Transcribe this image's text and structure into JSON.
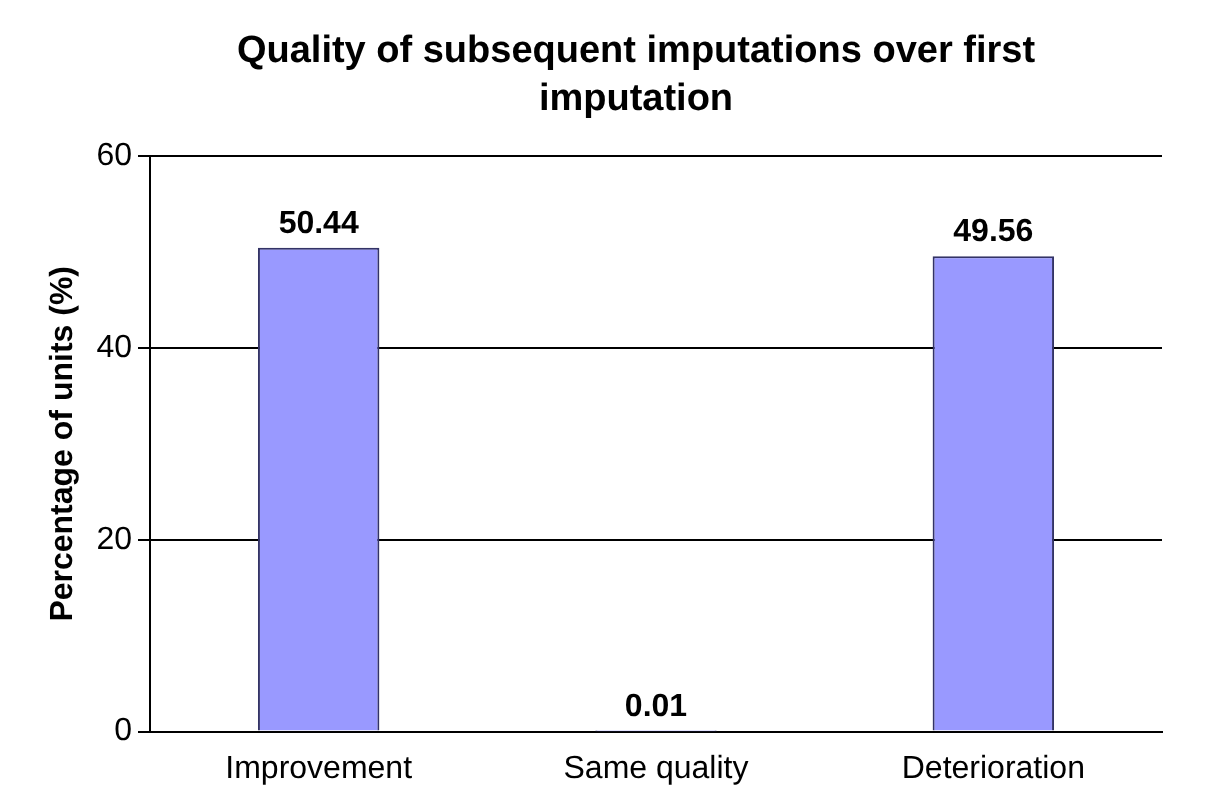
{
  "chart_data": {
    "type": "bar",
    "title": "Quality of subsequent imputations over first imputation",
    "ylabel": "Percentage of units (%)",
    "categories": [
      "Improvement",
      "Same quality",
      "Deterioration"
    ],
    "values": [
      50.44,
      0.01,
      49.56
    ],
    "color": "#9999ff",
    "ylim": [
      0,
      60
    ],
    "yticks": [
      0,
      20,
      40,
      60
    ],
    "grid": "y",
    "data_labels": true,
    "legend": false
  }
}
